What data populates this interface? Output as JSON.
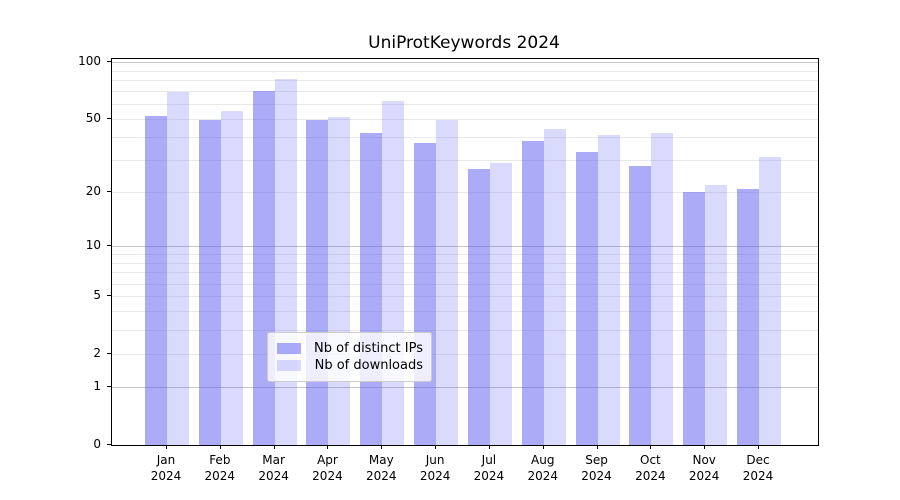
{
  "title": "UniProtKeywords 2024",
  "colors": {
    "ips_fill": "rgba(87,87,242,0.50)",
    "downloads_fill": "rgba(87,87,242,0.22)",
    "grid_minor": "#e9e9e9",
    "grid_major": "#c4c4c4",
    "axis": "#000000",
    "legend_border": "#cccccc"
  },
  "legend": {
    "items": [
      {
        "label": "Nb of distinct IPs",
        "color_key": "ips_fill"
      },
      {
        "label": "Nb of downloads",
        "color_key": "downloads_fill"
      }
    ]
  },
  "chart_data": {
    "type": "bar",
    "title": "UniProtKeywords 2024",
    "categories": [
      "Jan 2024",
      "Feb 2024",
      "Mar 2024",
      "Apr 2024",
      "May 2024",
      "Jun 2024",
      "Jul 2024",
      "Aug 2024",
      "Sep 2024",
      "Oct 2024",
      "Nov 2024",
      "Dec 2024"
    ],
    "series": [
      {
        "name": "Nb of distinct IPs",
        "values": [
          52,
          49,
          70,
          49,
          42,
          37,
          27,
          38,
          33,
          28,
          20,
          21
        ]
      },
      {
        "name": "Nb of downloads",
        "values": [
          69,
          55,
          81,
          51,
          62,
          49,
          29,
          44,
          41,
          42,
          22,
          31
        ]
      }
    ],
    "xlabel": "",
    "ylabel": "",
    "yscale": "symlog",
    "ylim": [
      0,
      105
    ],
    "yticks": [
      100,
      50,
      20,
      10,
      5,
      2,
      1,
      0
    ],
    "minor_gridlines": [
      2,
      3,
      4,
      5,
      6,
      7,
      8,
      9,
      20,
      30,
      40,
      50,
      60,
      70,
      80,
      90
    ],
    "major_gridlines": [
      1,
      10,
      100
    ],
    "grid": "horizontal",
    "legend_position": "lower center"
  }
}
